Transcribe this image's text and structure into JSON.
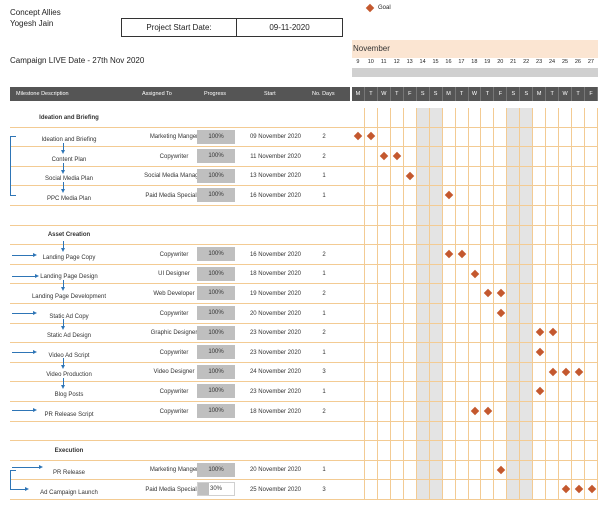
{
  "header": {
    "company": "Concept Allies",
    "person": "Yogesh Jain",
    "project_start_label": "Project Start Date:",
    "project_start_value": "09-11-2020",
    "campaign_live": "Campaign LIVE Date - 27th Nov 2020",
    "legend_label": "Goal"
  },
  "columns": {
    "description": "Milestone Description",
    "assigned": "Assigned To",
    "progress": "Progress",
    "start": "Start",
    "days": "No. Days"
  },
  "calendar": {
    "month": "November",
    "days": [
      "9",
      "10",
      "11",
      "12",
      "13",
      "14",
      "15",
      "16",
      "17",
      "18",
      "19",
      "20",
      "21",
      "22",
      "23",
      "24",
      "25",
      "26",
      "27"
    ],
    "letters": [
      "M",
      "T",
      "W",
      "T",
      "F",
      "S",
      "S",
      "M",
      "T",
      "W",
      "T",
      "F",
      "S",
      "S",
      "M",
      "T",
      "W",
      "T",
      "F"
    ],
    "weekend_indices": [
      5,
      6,
      12,
      13
    ]
  },
  "sections": [
    {
      "row": 0,
      "title": "Ideation and Briefing"
    },
    {
      "row": 6,
      "title": "Asset Creation"
    },
    {
      "row": 17,
      "title": "Execution"
    }
  ],
  "tasks": [
    {
      "row": 1,
      "desc": "Ideation and Briefing",
      "assigned": "Marketing Manger",
      "progress": "100%",
      "start": "09 November 2020",
      "days": "2",
      "goal_days": [
        0,
        1
      ]
    },
    {
      "row": 2,
      "desc": "Content Plan",
      "assigned": "Copywriter",
      "progress": "100%",
      "start": "11 November 2020",
      "days": "2",
      "goal_days": [
        2,
        3
      ]
    },
    {
      "row": 3,
      "desc": "Social Media Plan",
      "assigned": "Social Media Manager",
      "progress": "100%",
      "start": "13 November 2020",
      "days": "1",
      "goal_days": [
        4
      ]
    },
    {
      "row": 4,
      "desc": "PPC Media Plan",
      "assigned": "Paid Media Specialist",
      "progress": "100%",
      "start": "16 November 2020",
      "days": "1",
      "goal_days": [
        7
      ]
    },
    {
      "row": 7,
      "desc": "Landing Page Copy",
      "assigned": "Copywriter",
      "progress": "100%",
      "start": "16 November 2020",
      "days": "2",
      "goal_days": [
        7,
        8
      ]
    },
    {
      "row": 8,
      "desc": "Landing Page Design",
      "assigned": "UI Designer",
      "progress": "100%",
      "start": "18 November 2020",
      "days": "1",
      "goal_days": [
        9
      ]
    },
    {
      "row": 9,
      "desc": "Landing Page Development",
      "assigned": "Web Developer",
      "progress": "100%",
      "start": "19 November 2020",
      "days": "2",
      "goal_days": [
        10,
        11
      ]
    },
    {
      "row": 10,
      "desc": "Static Ad Copy",
      "assigned": "Copywriter",
      "progress": "100%",
      "start": "20 November 2020",
      "days": "1",
      "goal_days": [
        11
      ]
    },
    {
      "row": 11,
      "desc": "Static Ad Design",
      "assigned": "Graphic Designer",
      "progress": "100%",
      "start": "23 November 2020",
      "days": "2",
      "goal_days": [
        14,
        15
      ]
    },
    {
      "row": 12,
      "desc": "Video Ad Script",
      "assigned": "Copywriter",
      "progress": "100%",
      "start": "23 November 2020",
      "days": "1",
      "goal_days": [
        14
      ]
    },
    {
      "row": 13,
      "desc": "Video Production",
      "assigned": "Video Designer",
      "progress": "100%",
      "start": "24 November 2020",
      "days": "3",
      "goal_days": [
        15,
        16,
        17
      ]
    },
    {
      "row": 14,
      "desc": "Blog Posts",
      "assigned": "Copywriter",
      "progress": "100%",
      "start": "23 November 2020",
      "days": "1",
      "goal_days": [
        14
      ]
    },
    {
      "row": 15,
      "desc": "PR Release Script",
      "assigned": "Copywriter",
      "progress": "100%",
      "start": "18 November 2020",
      "days": "2",
      "goal_days": [
        9,
        10
      ]
    },
    {
      "row": 18,
      "desc": "PR Release",
      "assigned": "Marketing Manger",
      "progress": "100%",
      "start": "20 November 2020",
      "days": "1",
      "goal_days": [
        11
      ]
    },
    {
      "row": 19,
      "desc": "Ad Campaign Launch",
      "assigned": "Paid Media Specialist",
      "progress": "30%",
      "start": "25 November 2020",
      "days": "3",
      "goal_days": [
        16,
        17,
        18
      ]
    }
  ],
  "colors": {
    "goal": "#c4582e",
    "header_bg": "#555555",
    "grid_line": "#f3cb93",
    "arrow": "#2e75b6",
    "progress_bg": "#bfbfbf"
  }
}
